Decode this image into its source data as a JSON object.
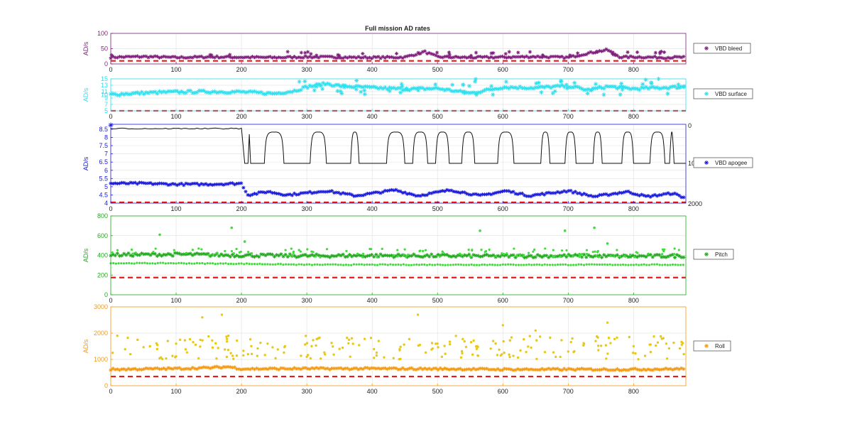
{
  "title": "Full mission AD rates",
  "chart_data": [
    {
      "type": "scatter",
      "ylabel": "AD/s",
      "color": "#7f1f7c",
      "xlim": [
        0,
        880
      ],
      "ylim": [
        0,
        100
      ],
      "x_ticks": [
        0,
        100,
        200,
        300,
        400,
        500,
        600,
        700,
        800
      ],
      "y_ticks": [
        0,
        50,
        100
      ],
      "legend": "VBD bleed",
      "legend_placement": "right",
      "threshold": 10,
      "series": [
        {
          "name": "VBD bleed",
          "marker": "*",
          "x": [
            0,
            50,
            100,
            150,
            200,
            250,
            300,
            350,
            400,
            450,
            480,
            500,
            550,
            600,
            650,
            700,
            730,
            760,
            780,
            800,
            850,
            880
          ],
          "values": [
            22,
            24,
            21,
            23,
            22,
            21,
            23,
            22,
            21,
            22,
            40,
            23,
            21,
            22,
            24,
            21,
            35,
            46,
            22,
            23,
            21,
            22
          ]
        }
      ]
    },
    {
      "type": "scatter",
      "ylabel": "AD/s",
      "color": "#2fe0ee",
      "xlim": [
        0,
        880
      ],
      "ylim": [
        5,
        15
      ],
      "x_ticks": [
        0,
        100,
        200,
        300,
        400,
        500,
        600,
        700,
        800
      ],
      "y_ticks": [
        5,
        7,
        9,
        10,
        11,
        13,
        15
      ],
      "legend": "VBD surface",
      "legend_placement": "right",
      "threshold": 5,
      "series": [
        {
          "name": "VBD surface",
          "marker": "*",
          "x": [
            0,
            50,
            100,
            150,
            200,
            250,
            280,
            300,
            330,
            350,
            400,
            450,
            500,
            550,
            600,
            650,
            700,
            730,
            760,
            800,
            850,
            880
          ],
          "values": [
            10.1,
            10.6,
            10.9,
            11,
            10.9,
            10.4,
            11.2,
            12.5,
            13.5,
            12.8,
            12.2,
            11.8,
            12,
            10.5,
            12.4,
            12.2,
            12.8,
            11.5,
            12.6,
            11.9,
            12.3,
            12.5
          ]
        }
      ]
    },
    {
      "type": "line+scatter",
      "ylabel": "AD/s",
      "color": "#1a1adb",
      "xlim": [
        0,
        880
      ],
      "ylim": [
        4,
        8.8
      ],
      "x_ticks": [
        0,
        100,
        200,
        300,
        400,
        500,
        600,
        700,
        800
      ],
      "y_ticks": [
        4,
        4.5,
        5,
        5.5,
        6,
        6.5,
        7,
        7.5,
        8,
        8.5
      ],
      "right_axis": {
        "ticks": [
          "0",
          "10",
          "2000"
        ],
        "range": [
          0,
          2000
        ]
      },
      "legend": "VBD apogee",
      "legend_placement": "right",
      "threshold": 4.05,
      "series": [
        {
          "name": "VBD apogee",
          "marker": "*",
          "x": [
            0,
            50,
            100,
            150,
            200,
            210,
            240,
            270,
            330,
            375,
            435,
            470,
            520,
            565,
            605,
            640,
            700,
            740,
            790,
            820,
            860,
            880
          ],
          "values": [
            5.2,
            5.2,
            5.15,
            5.15,
            5.2,
            4.5,
            4.7,
            4.5,
            4.75,
            4.45,
            4.8,
            4.45,
            4.8,
            4.45,
            4.75,
            4.45,
            4.75,
            4.4,
            4.7,
            4.4,
            4.6,
            4.3
          ]
        },
        {
          "axis": "right",
          "x": [
            0,
            200,
            210,
            240,
            270,
            330,
            375,
            435,
            470,
            520,
            565,
            605,
            640,
            700,
            740,
            790,
            820,
            860,
            880
          ],
          "values": [
            75,
            80,
            1000,
            350,
            1000,
            350,
            1000,
            350,
            1000,
            350,
            1000,
            350,
            1000,
            350,
            1000,
            350,
            1000,
            350,
            1000
          ]
        }
      ],
      "right_line_pulses": [
        [
          235,
          265
        ],
        [
          305,
          330
        ],
        [
          367,
          380
        ],
        [
          422,
          450
        ],
        [
          462,
          485
        ],
        [
          497,
          518
        ],
        [
          537,
          557
        ],
        [
          592,
          617
        ],
        [
          658,
          672
        ],
        [
          695,
          712
        ],
        [
          738,
          752
        ],
        [
          782,
          800
        ],
        [
          825,
          848
        ],
        [
          855,
          862
        ]
      ]
    },
    {
      "type": "scatter",
      "ylabel": "AD/s",
      "color": "#22a91f",
      "xlim": [
        0,
        880
      ],
      "ylim": [
        0,
        800
      ],
      "x_ticks": [
        0,
        100,
        200,
        300,
        400,
        500,
        600,
        700,
        800
      ],
      "y_ticks": [
        0,
        200,
        400,
        600,
        800
      ],
      "legend": "Pitch",
      "legend_placement": "right",
      "threshold": 175,
      "series": [
        {
          "name": "Pitch",
          "marker": "*",
          "x": [
            0,
            100,
            200,
            300,
            400,
            500,
            600,
            700,
            800,
            880
          ],
          "values": [
            405,
            410,
            400,
            395,
            398,
            395,
            392,
            395,
            390,
            395
          ]
        },
        {
          "marker": ".",
          "x": [
            0,
            100,
            200,
            300,
            400,
            500,
            600,
            700,
            800,
            880
          ],
          "values": [
            320,
            320,
            315,
            305,
            305,
            305,
            305,
            305,
            305,
            305
          ]
        },
        {
          "marker": ".",
          "x": [
            75,
            185,
            205,
            565,
            695,
            740,
            760
          ],
          "values": [
            610,
            680,
            540,
            650,
            650,
            680,
            520
          ]
        }
      ]
    },
    {
      "type": "scatter",
      "ylabel": "AD/s",
      "color": "#f39a13",
      "xlim": [
        0,
        880
      ],
      "ylim": [
        0,
        3000
      ],
      "x_ticks": [
        0,
        100,
        200,
        300,
        400,
        500,
        600,
        700,
        800
      ],
      "y_ticks": [
        0,
        1000,
        2000,
        3000
      ],
      "legend": "Roll",
      "legend_placement": "right",
      "threshold": 350,
      "series": [
        {
          "name": "Roll",
          "marker": "*",
          "x": [
            0,
            100,
            150,
            180,
            200,
            300,
            400,
            500,
            600,
            700,
            800,
            880
          ],
          "values": [
            620,
            650,
            680,
            720,
            640,
            650,
            650,
            640,
            620,
            620,
            620,
            640
          ]
        },
        {
          "marker": ".",
          "color": "#e9c818",
          "x": [
            10,
            30,
            60,
            100,
            140,
            170,
            180,
            210,
            240,
            300,
            350,
            410,
            470,
            500,
            560,
            600,
            650,
            700,
            760,
            800,
            850
          ],
          "values": [
            1900,
            1200,
            1500,
            1600,
            2600,
            2700,
            1900,
            1200,
            1600,
            1100,
            1400,
            1700,
            2700,
            1600,
            1400,
            2300,
            2100,
            1300,
            2400,
            1500,
            1600
          ]
        }
      ]
    }
  ]
}
